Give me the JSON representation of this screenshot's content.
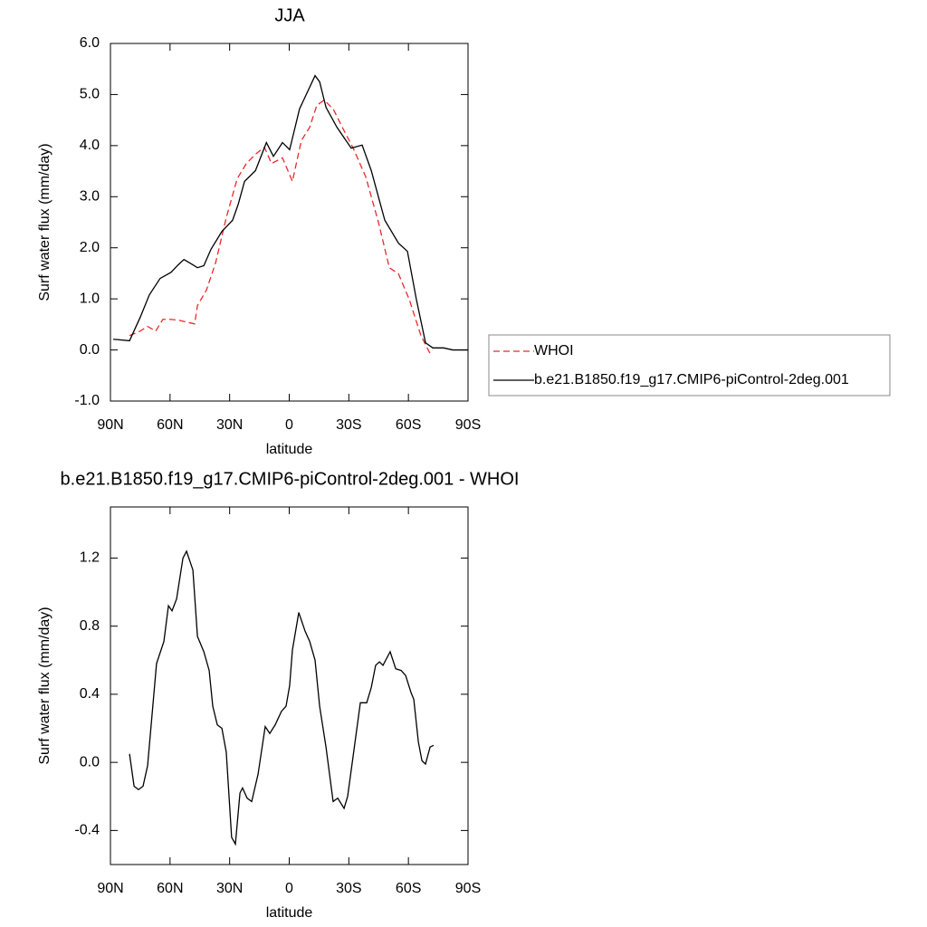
{
  "chart_data": [
    {
      "type": "line",
      "title": "JJA",
      "x_label": "latitude",
      "y_label": "Surf water flux (mm/day)",
      "xlim": [
        90,
        -90
      ],
      "xticks": [
        {
          "value": 90,
          "label": "90N"
        },
        {
          "value": 60,
          "label": "60N"
        },
        {
          "value": 30,
          "label": "30N"
        },
        0,
        {
          "value": -30,
          "label": "30S"
        },
        {
          "value": -60,
          "label": "60S"
        },
        {
          "value": -90,
          "label": "90S"
        }
      ],
      "ylim": [
        -1,
        6
      ],
      "yticks": [
        {
          "value": 6,
          "label": "6.0"
        },
        {
          "value": 5,
          "label": "5.0"
        },
        {
          "value": 4,
          "label": "4.0"
        },
        {
          "value": 3,
          "label": "3.0"
        },
        {
          "value": 2,
          "label": "2.0"
        },
        {
          "value": 1,
          "label": "1.0"
        },
        {
          "value": 0,
          "label": "0.0"
        },
        {
          "value": -1,
          "label": "-1.0"
        }
      ],
      "legend": "right",
      "series": [
        {
          "name": "WHOI",
          "color": "#e8292b",
          "line_style": "dashed",
          "x": [
            80.4,
            75,
            71.3,
            67.2,
            63.6,
            60,
            55.4,
            47.6,
            46.2,
            41.7,
            37.1,
            31.7,
            26.2,
            21.6,
            17,
            12.5,
            8.9,
            3.4,
            -1.6,
            -6.1,
            -10.3,
            -13.9,
            -17.6,
            -22.1,
            -26.7,
            -32.2,
            -38.5,
            -44.9,
            -50.4,
            -55,
            -60.4,
            -66.3,
            -70.9
          ],
          "values": [
            0.28,
            0.37,
            0.46,
            0.37,
            0.6,
            0.6,
            0.58,
            0.51,
            0.87,
            1.17,
            1.7,
            2.59,
            3.35,
            3.65,
            3.83,
            3.97,
            3.65,
            3.76,
            3.3,
            4.1,
            4.36,
            4.79,
            4.89,
            4.72,
            4.36,
            3.95,
            3.39,
            2.5,
            1.61,
            1.49,
            0.99,
            0.28,
            -0.07
          ]
        },
        {
          "name": "b.e21.B1850.f19_g17.CMIP6-piControl-2deg.001",
          "color": "#000000",
          "line_style": "solid",
          "x": [
            88.6,
            80.4,
            75,
            70.4,
            65,
            59.5,
            55.8,
            53,
            49.9,
            46.2,
            43,
            39.4,
            33.9,
            28.5,
            25.7,
            22.5,
            17,
            11.5,
            7.96,
            3.4,
            -0.2,
            -5.2,
            -9.4,
            -13,
            -15.3,
            -18.5,
            -24,
            -31.2,
            -36.7,
            -41.3,
            -48.1,
            -55,
            -59.5,
            -64,
            -68.6,
            -72.3,
            -77.7,
            -82.3,
            -90
          ],
          "values": [
            0.21,
            0.18,
            0.64,
            1.08,
            1.4,
            1.52,
            1.67,
            1.77,
            1.7,
            1.61,
            1.65,
            1.97,
            2.32,
            2.54,
            2.85,
            3.3,
            3.51,
            4.06,
            3.79,
            4.06,
            3.92,
            4.72,
            5.07,
            5.37,
            5.25,
            4.75,
            4.36,
            3.95,
            4.01,
            3.51,
            2.54,
            2.09,
            1.93,
            0.99,
            0.14,
            0.04,
            0.04,
            0,
            0
          ]
        }
      ]
    },
    {
      "type": "line",
      "title": "b.e21.B1850.f19_g17.CMIP6-piControl-2deg.001 - WHOI",
      "x_label": "latitude",
      "y_label": "Surf water flux (mm/day)",
      "xlim": [
        90,
        -90
      ],
      "xticks": [
        {
          "value": 90,
          "label": "90N"
        },
        {
          "value": 60,
          "label": "60N"
        },
        {
          "value": 30,
          "label": "30N"
        },
        0,
        {
          "value": -30,
          "label": "30S"
        },
        {
          "value": -60,
          "label": "60S"
        },
        {
          "value": -90,
          "label": "90S"
        }
      ],
      "ylim": [
        -0.6,
        1.5
      ],
      "yticks": [
        1.2,
        0.8,
        0.4,
        {
          "value": 0,
          "label": "0.0"
        },
        -0.4
      ],
      "series": [
        {
          "color": "#000000",
          "line_style": "solid",
          "x": [
            80.4,
            78.1,
            75.9,
            73.6,
            71.3,
            66.8,
            63.1,
            60.8,
            59,
            56.7,
            53.5,
            51.7,
            48.5,
            46.2,
            43,
            40.3,
            38.5,
            36.2,
            33.9,
            31.7,
            29,
            27.1,
            24.8,
            23.5,
            21.2,
            18.9,
            15.7,
            12.1,
            9.8,
            7.1,
            3.9,
            1.6,
            -0.2,
            -1.6,
            -4.8,
            -8,
            -10.3,
            -13,
            -15.3,
            -18.5,
            -22.1,
            -24.4,
            -27.6,
            -29.4,
            -32.2,
            -35.8,
            -39,
            -41.3,
            -43.5,
            -45.4,
            -47.2,
            -50.8,
            -53.6,
            -56.3,
            -58.6,
            -61.3,
            -62.7,
            -65,
            -66.8,
            -68.6,
            -70.9,
            -72.7
          ],
          "values": [
            0.05,
            -0.14,
            -0.16,
            -0.14,
            -0.02,
            0.58,
            0.71,
            0.92,
            0.89,
            0.96,
            1.2,
            1.24,
            1.13,
            0.74,
            0.65,
            0.54,
            0.33,
            0.22,
            0.2,
            0.06,
            -0.44,
            -0.48,
            -0.18,
            -0.15,
            -0.21,
            -0.23,
            -0.07,
            0.21,
            0.17,
            0.22,
            0.3,
            0.33,
            0.45,
            0.66,
            0.88,
            0.77,
            0.71,
            0.6,
            0.33,
            0.09,
            -0.23,
            -0.21,
            -0.27,
            -0.2,
            0.04,
            0.35,
            0.35,
            0.44,
            0.57,
            0.59,
            0.57,
            0.65,
            0.55,
            0.54,
            0.51,
            0.41,
            0.37,
            0.12,
            0.01,
            -0.01,
            0.09,
            0.1
          ]
        }
      ]
    }
  ]
}
